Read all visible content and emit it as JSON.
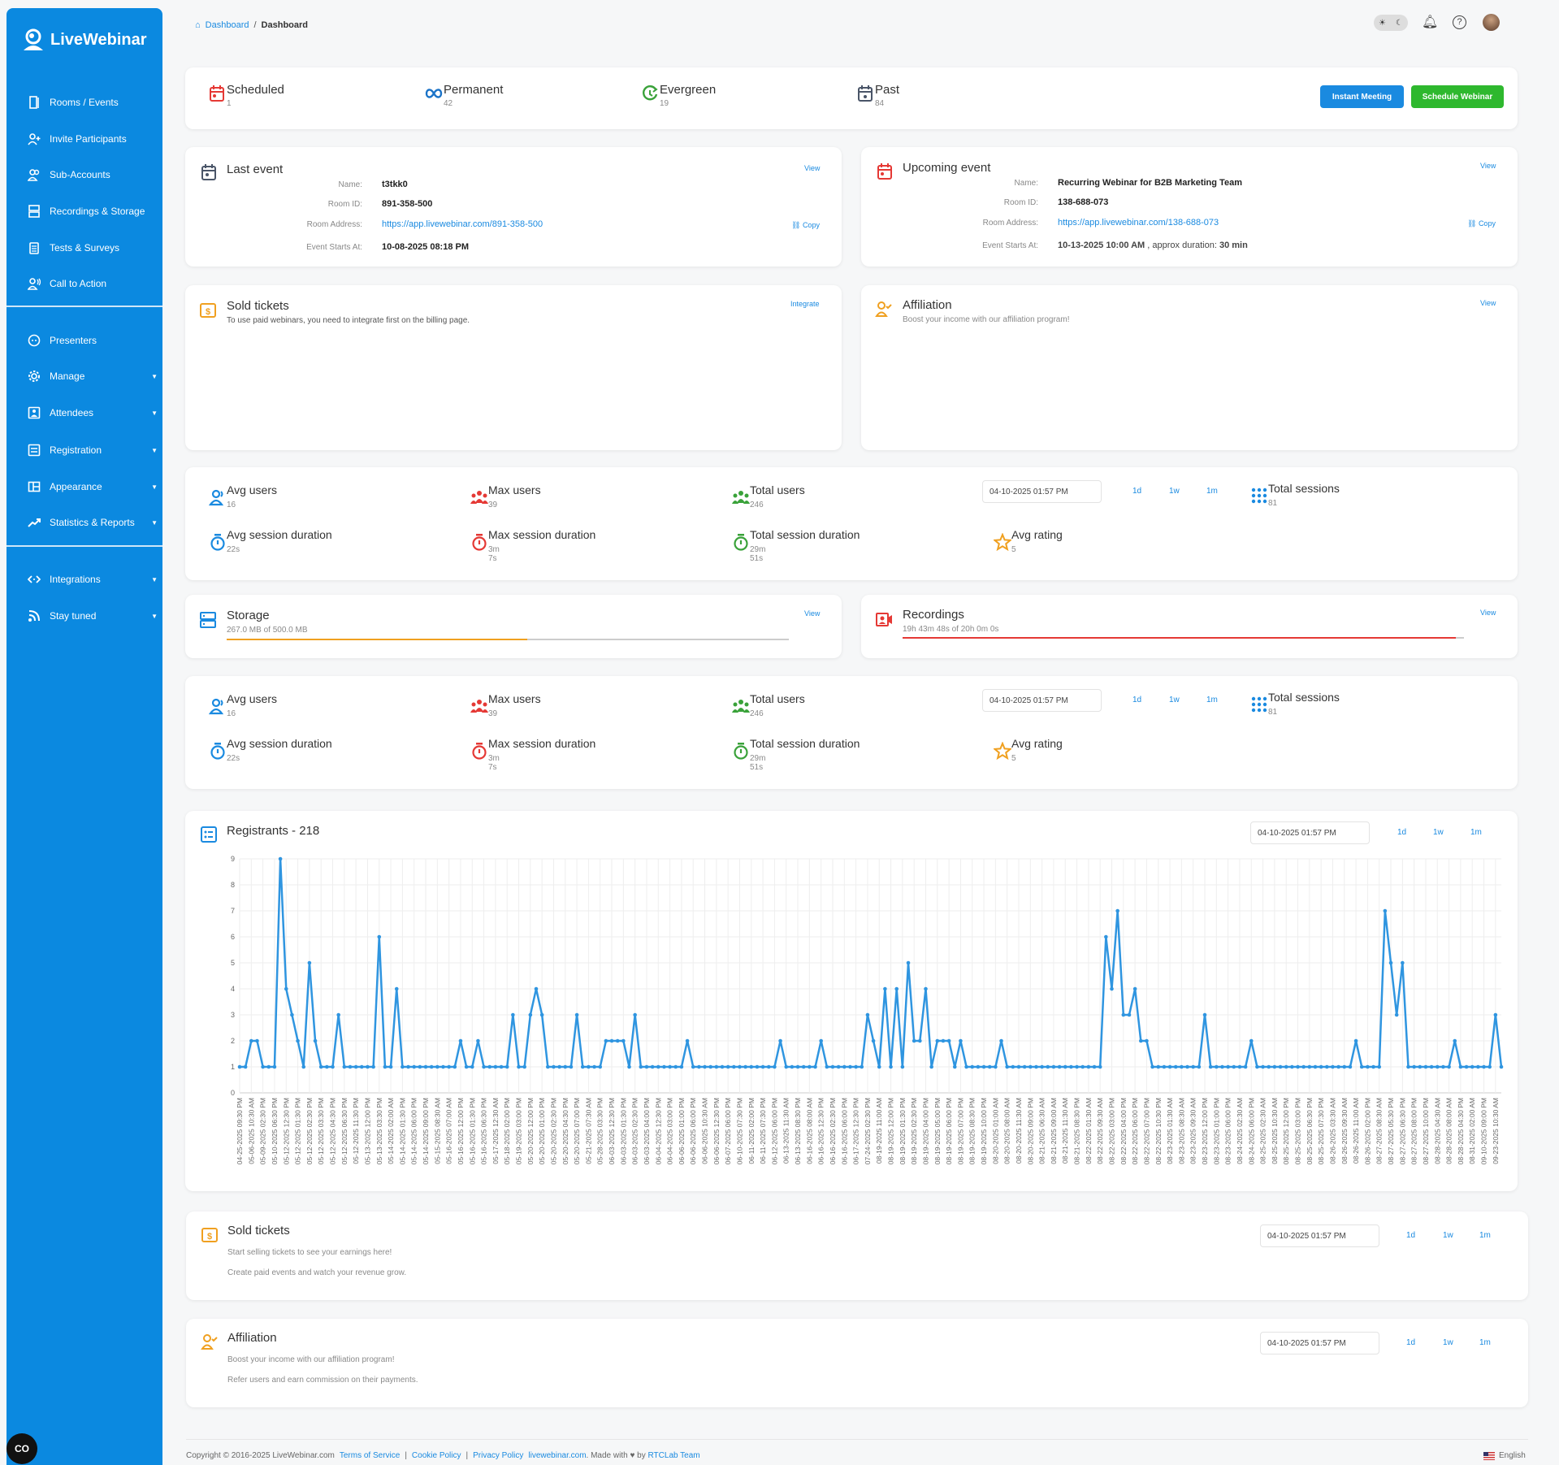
{
  "brand": {
    "name": "LiveWebinar",
    "accent": "#0b89e0"
  },
  "sidebar": {
    "items": [
      {
        "label": "Rooms / Events",
        "icon": "door-icon"
      },
      {
        "label": "Invite Participants",
        "icon": "user-plus-icon"
      },
      {
        "label": "Sub-Accounts",
        "icon": "users-icon"
      },
      {
        "label": "Recordings & Storage",
        "icon": "storage-icon"
      },
      {
        "label": "Tests & Surveys",
        "icon": "clipboard-icon"
      },
      {
        "label": "Call to Action",
        "icon": "megaphone-user-icon"
      },
      {
        "label": "Presenters",
        "icon": "presenter-face-icon"
      },
      {
        "label": "Manage",
        "icon": "gear-icon",
        "dropdown": true
      },
      {
        "label": "Attendees",
        "icon": "attendee-icon",
        "dropdown": true
      },
      {
        "label": "Registration",
        "icon": "form-icon",
        "dropdown": true
      },
      {
        "label": "Appearance",
        "icon": "layout-icon",
        "dropdown": true
      },
      {
        "label": "Statistics & Reports",
        "icon": "trend-icon",
        "dropdown": true
      },
      {
        "label": "Integrations",
        "icon": "code-arrows-icon",
        "dropdown": true
      },
      {
        "label": "Stay tuned",
        "icon": "rss-icon",
        "dropdown": true
      }
    ]
  },
  "header": {
    "breadcrumb": {
      "home": "Dashboard",
      "current": "Dashboard"
    }
  },
  "event_types": [
    {
      "label": "Scheduled",
      "count": "1",
      "color": "#e53935"
    },
    {
      "label": "Permanent",
      "count": "42",
      "color": "#1a73c8"
    },
    {
      "label": "Evergreen",
      "count": "19",
      "color": "#3aa23a"
    },
    {
      "label": "Past",
      "count": "84",
      "color": "#4a5568"
    }
  ],
  "buttons": {
    "instant_meeting": "Instant Meeting",
    "schedule_webinar": "Schedule Webinar",
    "instant_color": "#1a8ae0",
    "schedule_color": "#2eb82e"
  },
  "labels": {
    "name": "Name:",
    "room_id": "Room ID:",
    "room_address": "Room Address:",
    "starts_at": "Event Starts At:",
    "view": "View",
    "copy": "Copy",
    "integrate": "Integrate"
  },
  "last_event": {
    "title": "Last event",
    "name": "t3tkk0",
    "room_id": "891-358-500",
    "room_address": "https://app.livewebinar.com/891-358-500",
    "starts_at": "10-08-2025 08:18 PM"
  },
  "upcoming_event": {
    "title": "Upcoming event",
    "name": "Recurring Webinar for B2B Marketing Team",
    "room_id": "138-688-073",
    "room_address": "https://app.livewebinar.com/138-688-073",
    "starts_at": "10-13-2025 10:00 AM",
    "approx_label": ", approx duration:",
    "duration": "30 min"
  },
  "sold_tickets_top": {
    "title": "Sold tickets",
    "text": "To use paid webinars, you need to integrate first on the billing page."
  },
  "affiliation_top": {
    "title": "Affiliation",
    "text": "Boost your income with our affiliation program!"
  },
  "stats": {
    "date": "04-10-2025 01:57 PM",
    "ranges": [
      "1d",
      "1w",
      "1m"
    ],
    "avg_users": {
      "label": "Avg users",
      "value": "16"
    },
    "max_users": {
      "label": "Max users",
      "value": "39"
    },
    "total_users": {
      "label": "Total users",
      "value": "246"
    },
    "total_sessions": {
      "label": "Total sessions",
      "value": "81"
    },
    "avg_session": {
      "label": "Avg session duration",
      "value": "22s"
    },
    "max_session": {
      "label": "Max session duration",
      "value": "3m 7s"
    },
    "total_session": {
      "label": "Total session duration",
      "value": "29m 51s"
    },
    "avg_rating": {
      "label": "Avg rating",
      "value": "5"
    }
  },
  "storage": {
    "title": "Storage",
    "text": "267.0 MB of 500.0 MB",
    "fraction": 0.534,
    "color": "#f0a020"
  },
  "recordings": {
    "title": "Recordings",
    "text": "19h 43m 48s of 20h 0m 0s",
    "fraction": 0.986,
    "color": "#e53935"
  },
  "registrants": {
    "title": "Registrants - 218",
    "date": "04-10-2025 01:57 PM",
    "ranges": [
      "1d",
      "1w",
      "1m"
    ],
    "chart_data": {
      "type": "line",
      "color": "#2f95e0",
      "ylim": [
        0,
        9
      ],
      "yticks": [
        0,
        1,
        2,
        3,
        4,
        5,
        6,
        7,
        8,
        9
      ],
      "grid": true,
      "values": [
        1,
        1,
        2,
        2,
        1,
        1,
        1,
        9,
        4,
        3,
        2,
        1,
        5,
        2,
        1,
        1,
        1,
        3,
        1,
        1,
        1,
        1,
        1,
        1,
        6,
        1,
        1,
        4,
        1,
        1,
        1,
        1,
        1,
        1,
        1,
        1,
        1,
        1,
        2,
        1,
        1,
        2,
        1,
        1,
        1,
        1,
        1,
        3,
        1,
        1,
        3,
        4,
        3,
        1,
        1,
        1,
        1,
        1,
        3,
        1,
        1,
        1,
        1,
        2,
        2,
        2,
        2,
        1,
        3,
        1,
        1,
        1,
        1,
        1,
        1,
        1,
        1,
        2,
        1,
        1,
        1,
        1,
        1,
        1,
        1,
        1,
        1,
        1,
        1,
        1,
        1,
        1,
        1,
        2,
        1,
        1,
        1,
        1,
        1,
        1,
        2,
        1,
        1,
        1,
        1,
        1,
        1,
        1,
        3,
        2,
        1,
        4,
        1,
        4,
        1,
        5,
        2,
        2,
        4,
        1,
        2,
        2,
        2,
        1,
        2,
        1,
        1,
        1,
        1,
        1,
        1,
        2,
        1,
        1,
        1,
        1,
        1,
        1,
        1,
        1,
        1,
        1,
        1,
        1,
        1,
        1,
        1,
        1,
        1,
        6,
        4,
        7,
        3,
        3,
        4,
        2,
        2,
        1,
        1,
        1,
        1,
        1,
        1,
        1,
        1,
        1,
        3,
        1,
        1,
        1,
        1,
        1,
        1,
        1,
        2,
        1,
        1,
        1,
        1,
        1,
        1,
        1,
        1,
        1,
        1,
        1,
        1,
        1,
        1,
        1,
        1,
        1,
        2,
        1,
        1,
        1,
        1,
        7,
        5,
        3,
        5,
        1,
        1,
        1,
        1,
        1,
        1,
        1,
        1,
        2,
        1,
        1,
        1,
        1,
        1,
        1,
        3,
        1
      ],
      "x_tick_labels": [
        "04-25-2025 09:30 PM",
        "05-06-2025 10:30 AM",
        "05-09-2025 02:30 PM",
        "05-10-2025 06:30 PM",
        "05-12-2025 12:30 PM",
        "05-12-2025 01:30 PM",
        "05-12-2025 02:30 PM",
        "05-12-2025 03:30 PM",
        "05-12-2025 04:30 PM",
        "05-12-2025 06:30 PM",
        "05-12-2025 11:30 PM",
        "05-13-2025 12:00 PM",
        "05-13-2025 03:30 PM",
        "05-14-2025 02:00 AM",
        "05-14-2025 01:30 PM",
        "05-14-2025 06:00 PM",
        "05-14-2025 09:00 PM",
        "05-15-2025 08:30 AM",
        "05-16-2025 07:00 AM",
        "05-16-2025 12:00 PM",
        "05-16-2025 01:30 PM",
        "05-16-2025 06:30 PM",
        "05-17-2025 12:30 AM",
        "05-18-2025 02:00 PM",
        "05-19-2025 03:00 PM",
        "05-20-2025 12:00 PM",
        "05-20-2025 01:00 PM",
        "05-20-2025 02:30 PM",
        "05-20-2025 04:30 PM",
        "05-20-2025 07:00 PM",
        "05-21-2025 07:30 AM",
        "05-28-2025 03:30 PM",
        "06-03-2025 12:30 PM",
        "06-03-2025 01:30 PM",
        "06-03-2025 02:30 PM",
        "06-03-2025 04:00 PM",
        "06-04-2025 12:30 PM",
        "06-04-2025 03:00 PM",
        "06-06-2025 01:00 PM",
        "06-06-2025 06:00 PM",
        "06-06-2025 10:30 AM",
        "06-06-2025 12:30 PM",
        "06-07-2025 06:00 PM",
        "06-10-2025 07:30 PM",
        "06-11-2025 02:00 PM",
        "06-11-2025 07:30 PM",
        "06-12-2025 06:00 PM",
        "06-13-2025 11:30 AM",
        "06-13-2025 08:30 PM",
        "06-16-2025 08:00 AM",
        "06-16-2025 12:30 PM",
        "06-16-2025 02:30 PM",
        "06-16-2025 06:00 PM",
        "06-17-2025 12:30 PM",
        "07-24-2025 02:30 PM",
        "08-19-2025 11:00 AM",
        "08-19-2025 12:00 PM",
        "08-19-2025 01:30 PM",
        "08-19-2025 02:30 PM",
        "08-19-2025 04:00 PM",
        "08-19-2025 05:00 PM",
        "08-19-2025 06:00 PM",
        "08-19-2025 07:00 PM",
        "08-19-2025 08:30 PM",
        "08-19-2025 10:00 PM",
        "08-20-2025 01:00 AM",
        "08-20-2025 08:00 AM",
        "08-20-2025 11:30 AM",
        "08-20-2025 09:00 PM",
        "08-21-2025 06:30 AM",
        "08-21-2025 09:00 AM",
        "08-21-2025 11:30 AM",
        "08-21-2025 08:30 PM",
        "08-22-2025 01:30 AM",
        "08-22-2025 09:30 AM",
        "08-22-2025 03:00 PM",
        "08-22-2025 04:00 PM",
        "08-22-2025 06:00 PM",
        "08-22-2025 07:00 PM",
        "08-22-2025 10:30 PM",
        "08-23-2025 01:30 AM",
        "08-23-2025 08:30 AM",
        "08-23-2025 09:30 AM",
        "08-23-2025 12:00 PM",
        "08-23-2025 01:00 PM",
        "08-23-2025 06:00 PM",
        "08-24-2025 02:30 AM",
        "08-24-2025 06:00 PM",
        "08-25-2025 02:30 AM",
        "08-25-2025 10:30 AM",
        "08-25-2025 12:00 PM",
        "08-25-2025 03:00 PM",
        "08-25-2025 06:30 PM",
        "08-25-2025 07:30 PM",
        "08-26-2025 03:30 AM",
        "08-26-2025 09:30 AM",
        "08-26-2025 11:00 AM",
        "08-26-2025 02:00 PM",
        "08-27-2025 08:30 AM",
        "08-27-2025 05:30 PM",
        "08-27-2025 06:30 PM",
        "08-27-2025 08:00 PM",
        "08-27-2025 10:00 PM",
        "08-28-2025 04:30 AM",
        "08-28-2025 08:00 AM",
        "08-28-2025 04:30 PM",
        "08-31-2025 02:00 AM",
        "09-10-2025 09:00 PM",
        "09-23-2025 10:30 AM"
      ]
    }
  },
  "sold_tickets_bottom": {
    "title": "Sold tickets",
    "line1": "Start selling tickets to see your earnings here!",
    "line2": "Create paid events and watch your revenue grow.",
    "date": "04-10-2025 01:57 PM",
    "ranges": [
      "1d",
      "1w",
      "1m"
    ]
  },
  "affiliation_bottom": {
    "title": "Affiliation",
    "line1": "Boost your income with our affiliation program!",
    "line2": "Refer users and earn commission on their payments.",
    "date": "04-10-2025 01:57 PM",
    "ranges": [
      "1d",
      "1w",
      "1m"
    ]
  },
  "footer": {
    "copyright": "Copyright © 2016-2025 LiveWebinar.com",
    "links": [
      "Terms of Service",
      "Cookie Policy",
      "Privacy Policy"
    ],
    "site": "livewebinar.com",
    "made_with": ". Made with",
    "by": "by",
    "team": "RTCLab Team",
    "language": "English"
  },
  "chat_badge": "CO"
}
